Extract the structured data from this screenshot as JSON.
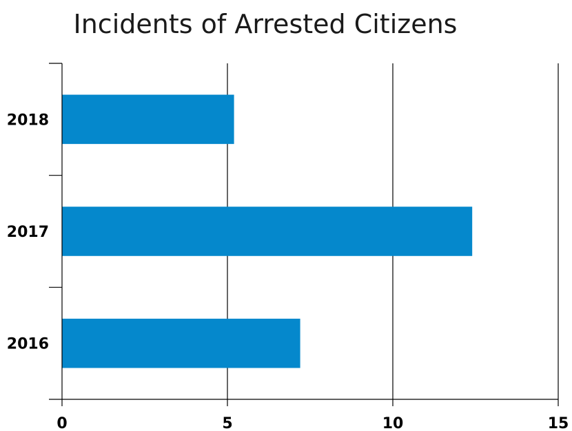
{
  "chart_data": {
    "type": "bar",
    "orientation": "horizontal",
    "title": "Incidents of Arrested Citizens",
    "xlabel": "",
    "ylabel": "",
    "categories": [
      "2018",
      "2017",
      "2016"
    ],
    "values": [
      5.2,
      12.4,
      7.2
    ],
    "xlim": [
      0,
      15
    ],
    "x_ticks": [
      "0",
      "5",
      "10",
      "15"
    ],
    "grid": "vertical",
    "legend": "none",
    "bar_color": "#0588cc"
  }
}
